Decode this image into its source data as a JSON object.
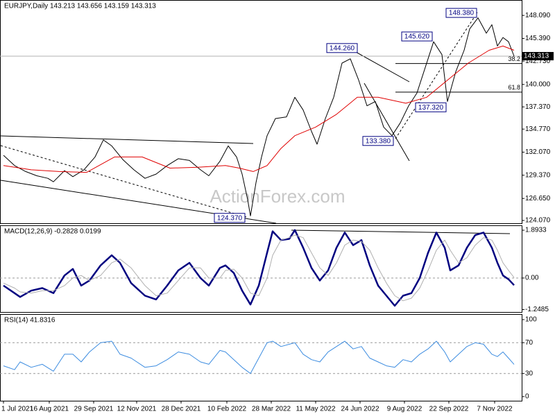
{
  "chart_data": [
    {
      "type": "line",
      "title": "EURJPY,Daily 143.213 143.656 143.159 143.313",
      "xlim": [
        -2.5,
        373.5
      ],
      "ylim": [
        123.74,
        149.89
      ],
      "yticks": [
        {
          "value": 148.09,
          "label": "148.090"
        },
        {
          "value": 145.39,
          "label": "145.390"
        },
        {
          "value": 142.73,
          "label": "142.730"
        },
        {
          "value": 140.0,
          "label": "140.000"
        },
        {
          "value": 137.37,
          "label": "137.370"
        },
        {
          "value": 134.77,
          "label": "134.770"
        },
        {
          "value": 132.07,
          "label": "132.070"
        },
        {
          "value": 129.37,
          "label": "129.370"
        },
        {
          "value": 126.65,
          "label": "126.650"
        },
        {
          "value": 124.07,
          "label": "124.070"
        }
      ],
      "series": [
        {
          "color": "#000000",
          "x": [
            0,
            8,
            16,
            24,
            32,
            36,
            44,
            50,
            58,
            66,
            72,
            78,
            86,
            94,
            102,
            110,
            118,
            126,
            134,
            142,
            148,
            156,
            162,
            168,
            172,
            176,
            178,
            182,
            186,
            190,
            196,
            204,
            210,
            216,
            222,
            226,
            232,
            238,
            244,
            250,
            256,
            262,
            268,
            274,
            280,
            286,
            292,
            298,
            304,
            310,
            316,
            320,
            326,
            332,
            336,
            342,
            348,
            352,
            356,
            360,
            364,
            368
          ],
          "values": [
            131.7,
            130.5,
            129.8,
            129.3,
            129.0,
            128.6,
            129.9,
            129.2,
            130.0,
            131.5,
            133.5,
            132.8,
            131.2,
            130.0,
            129.0,
            129.5,
            130.5,
            131.3,
            131.1,
            130.0,
            129.3,
            131.0,
            132.8,
            131.5,
            129.5,
            126.5,
            124.6,
            128.5,
            131.5,
            134.0,
            136.0,
            136.2,
            138.5,
            137.0,
            134.5,
            133.0,
            136.0,
            138.5,
            142.5,
            143.0,
            140.5,
            137.5,
            138.0,
            135.0,
            134.0,
            135.5,
            137.5,
            139.0,
            142.0,
            145.0,
            143.5,
            138.0,
            141.5,
            144.0,
            146.5,
            147.8,
            146.0,
            147.0,
            144.5,
            145.5,
            145.0,
            143.313
          ]
        },
        {
          "color": "#e00000",
          "x": [
            0,
            20,
            40,
            60,
            80,
            100,
            120,
            140,
            160,
            170,
            180,
            190,
            200,
            210,
            225,
            240,
            255,
            270,
            290,
            305,
            320,
            335,
            350,
            360,
            368
          ],
          "values": [
            130.5,
            130.0,
            129.8,
            129.7,
            131.5,
            131.5,
            130.2,
            130.3,
            130.5,
            130.2,
            129.8,
            130.5,
            132.5,
            134.0,
            135.0,
            136.5,
            138.5,
            138.5,
            137.8,
            138.5,
            140.5,
            142.5,
            144.0,
            144.5,
            144.0
          ]
        }
      ],
      "last_price": {
        "value": 143.313,
        "label": "143.313"
      },
      "fib_levels": [
        {
          "name": "38.2",
          "value": 142.45
        },
        {
          "name": "61.8",
          "value": 139.1
        }
      ],
      "annotations": [
        {
          "text": "148.380",
          "x": 342,
          "value": 148.38,
          "align": "right"
        },
        {
          "text": "145.620",
          "x": 310,
          "value": 145.62,
          "align": "right"
        },
        {
          "text": "144.260",
          "x": 244,
          "value": 144.26,
          "align": "center"
        },
        {
          "text": "137.320",
          "x": 298,
          "value": 137.32,
          "align": "left"
        },
        {
          "text": "133.380",
          "x": 282,
          "value": 133.38,
          "align": "right"
        },
        {
          "text": "124.370",
          "x": 175,
          "value": 124.37,
          "align": "right"
        }
      ]
    },
    {
      "type": "line",
      "title": "MACD(12,26,9) -0.2828 0.0199",
      "xlim": [
        -2.5,
        373.5
      ],
      "ylim": [
        -1.346,
        2.086
      ],
      "yticks": [
        1.8933,
        {
          "value": 0,
          "label": "0.00"
        },
        -1.2485
      ],
      "levels": [
        0
      ],
      "series": [
        {
          "color": "#000080",
          "width": 2.5,
          "x": [
            0,
            8,
            12,
            20,
            28,
            36,
            44,
            50,
            56,
            62,
            70,
            78,
            84,
            92,
            102,
            110,
            118,
            126,
            134,
            142,
            148,
            156,
            160,
            166,
            172,
            178,
            184,
            190,
            194,
            200,
            206,
            210,
            216,
            222,
            228,
            234,
            240,
            246,
            252,
            258,
            264,
            270,
            276,
            282,
            288,
            294,
            300,
            306,
            312,
            318,
            322,
            328,
            334,
            340,
            346,
            352,
            356,
            360,
            364,
            368
          ],
          "values": [
            -0.3,
            -0.6,
            -0.75,
            -0.5,
            -0.4,
            -0.6,
            0.1,
            0.36,
            -0.3,
            -0.1,
            0.5,
            0.9,
            0.6,
            -0.2,
            -0.7,
            -0.85,
            -0.3,
            0.3,
            0.6,
            0.0,
            -0.3,
            0.4,
            0.5,
            0.2,
            -0.5,
            -1.05,
            -0.3,
            1.0,
            1.85,
            1.5,
            1.55,
            1.9,
            1.2,
            0.4,
            -0.1,
            0.3,
            1.2,
            1.8,
            1.3,
            1.5,
            0.5,
            -0.3,
            -0.7,
            -1.1,
            -0.7,
            -0.6,
            0.0,
            1.0,
            1.8,
            1.2,
            0.3,
            0.5,
            1.2,
            1.7,
            1.8,
            1.2,
            0.6,
            0.1,
            -0.05,
            -0.2828
          ]
        },
        {
          "color": "#b0b0b0",
          "width": 1,
          "x": [
            0,
            8,
            12,
            20,
            28,
            36,
            44,
            50,
            56,
            62,
            70,
            78,
            84,
            92,
            102,
            110,
            118,
            126,
            134,
            142,
            148,
            156,
            160,
            166,
            172,
            178,
            184,
            190,
            194,
            200,
            206,
            210,
            216,
            222,
            228,
            234,
            240,
            246,
            252,
            258,
            264,
            270,
            276,
            282,
            288,
            294,
            300,
            306,
            312,
            318,
            322,
            328,
            334,
            340,
            346,
            352,
            356,
            360,
            364,
            368
          ],
          "values": [
            -0.2,
            -0.4,
            -0.55,
            -0.6,
            -0.5,
            -0.5,
            -0.3,
            0.0,
            0.1,
            -0.1,
            0.1,
            0.6,
            0.75,
            0.4,
            -0.3,
            -0.7,
            -0.6,
            -0.1,
            0.4,
            0.4,
            0.0,
            0.0,
            0.3,
            0.35,
            0.0,
            -0.6,
            -0.7,
            0.0,
            0.9,
            1.5,
            1.6,
            1.7,
            1.6,
            1.0,
            0.4,
            0.1,
            0.6,
            1.3,
            1.5,
            1.45,
            1.1,
            0.4,
            -0.2,
            -0.7,
            -0.9,
            -0.8,
            -0.4,
            0.3,
            1.1,
            1.5,
            1.1,
            0.6,
            0.8,
            1.3,
            1.6,
            1.5,
            1.1,
            0.6,
            0.3,
            0.0199
          ]
        }
      ]
    },
    {
      "type": "line",
      "title": "RSI(14) 41.8316",
      "xlim": [
        -2.5,
        373.5
      ],
      "ylim": [
        -5.4,
        107.2
      ],
      "yticks": [
        100,
        70,
        30,
        0
      ],
      "levels": [
        70,
        30
      ],
      "xticks": [
        {
          "value": 0,
          "label": "1 Jul 2021"
        },
        {
          "value": 33,
          "label": "16 Aug 2021"
        },
        {
          "value": 65,
          "label": "29 Sep 2021"
        },
        {
          "value": 96,
          "label": "12 Nov 2021"
        },
        {
          "value": 128,
          "label": "28 Dec 2021"
        },
        {
          "value": 161,
          "label": "10 Feb 2022"
        },
        {
          "value": 193,
          "label": "28 Mar 2022"
        },
        {
          "value": 225,
          "label": "11 May 2022"
        },
        {
          "value": 257,
          "label": "24 Jun 2022"
        },
        {
          "value": 289,
          "label": "9 Aug 2022"
        },
        {
          "value": 321,
          "label": "22 Sep 2022"
        },
        {
          "value": 354,
          "label": "7 Nov 2022"
        }
      ],
      "series": [
        {
          "color": "#3c8ce0",
          "width": 1,
          "x": [
            0,
            8,
            12,
            20,
            28,
            36,
            44,
            50,
            56,
            62,
            70,
            78,
            84,
            92,
            102,
            110,
            118,
            126,
            134,
            142,
            148,
            156,
            160,
            166,
            172,
            178,
            184,
            190,
            194,
            200,
            206,
            210,
            216,
            222,
            228,
            234,
            240,
            246,
            252,
            258,
            264,
            270,
            276,
            282,
            288,
            294,
            300,
            306,
            312,
            318,
            322,
            328,
            334,
            340,
            346,
            352,
            356,
            360,
            364,
            368
          ],
          "values": [
            40,
            35,
            45,
            38,
            42,
            33,
            55,
            55,
            45,
            58,
            70,
            72,
            55,
            50,
            38,
            40,
            48,
            58,
            55,
            45,
            42,
            60,
            58,
            48,
            38,
            30,
            50,
            70,
            72,
            65,
            68,
            70,
            55,
            48,
            45,
            58,
            65,
            72,
            62,
            65,
            50,
            45,
            40,
            38,
            48,
            45,
            55,
            62,
            72,
            58,
            45,
            55,
            65,
            70,
            68,
            55,
            52,
            58,
            50,
            41.8316
          ]
        }
      ]
    }
  ]
}
